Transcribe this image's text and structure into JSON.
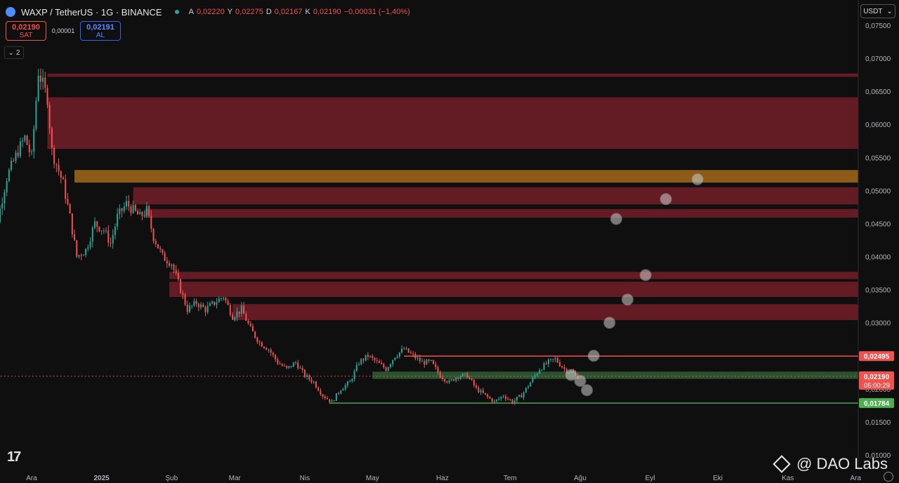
{
  "header": {
    "symbol_title": "WAXP / TetherUS · 1G · BINANCE",
    "ohlc": [
      {
        "key": "A",
        "value": "0,02220"
      },
      {
        "key": "Y",
        "value": "0,02275"
      },
      {
        "key": "D",
        "value": "0,02167"
      },
      {
        "key": "K",
        "value": "0,02190"
      }
    ],
    "change": "−0,00031 (−1,40%)"
  },
  "trade": {
    "sell_price": "0,02190",
    "sell_label": "SAT",
    "spread": "0,00001",
    "buy_price": "0,02191",
    "buy_label": "AL"
  },
  "collapse_count": "2",
  "currency": "USDT",
  "watermark": "@ DAO Labs",
  "tv_logo": "17",
  "colors": {
    "background": "#0f0f0f",
    "up": "#26a69a",
    "down": "#ef5350",
    "zone_red": "#6e1e27",
    "zone_orange": "#a2691a",
    "zone_green": "#2f5a32"
  },
  "chart_data": {
    "type": "candlestick",
    "y_axis": {
      "min": 0.009,
      "max": 0.0755,
      "ticks": [
        "0,07500",
        "0,07000",
        "0,06500",
        "0,06000",
        "0,05500",
        "0,05000",
        "0,04500",
        "0,04000",
        "0,03500",
        "0,03000",
        "0,02500",
        "0,02000",
        "0,01500",
        "0,01000"
      ],
      "tick_values": [
        0.075,
        0.07,
        0.065,
        0.06,
        0.055,
        0.05,
        0.045,
        0.04,
        0.035,
        0.03,
        0.025,
        0.02,
        0.015,
        0.01
      ]
    },
    "x_axis": {
      "labels": [
        "Ara",
        "2025",
        "Şub",
        "Mar",
        "Nis",
        "May",
        "Haz",
        "Tem",
        "Ağu",
        "Eyl",
        "Eki",
        "Kas",
        "Ara"
      ],
      "label_dates": [
        "2024-12-01",
        "2025-01-01",
        "2025-02-01",
        "2025-03-01",
        "2025-04-01",
        "2025-05-01",
        "2025-06-01",
        "2025-07-01",
        "2025-08-01",
        "2025-09-01",
        "2025-10-01",
        "2025-11-01",
        "2025-12-01"
      ]
    },
    "price_path": [
      [
        "2024-11-11",
        0.04
      ],
      [
        "2024-11-15",
        0.044
      ],
      [
        "2024-11-20",
        0.052
      ],
      [
        "2024-11-25",
        0.056
      ],
      [
        "2024-11-28",
        0.058
      ],
      [
        "2024-12-01",
        0.055
      ],
      [
        "2024-12-04",
        0.068
      ],
      [
        "2024-12-06",
        0.066
      ],
      [
        "2024-12-08",
        0.064
      ],
      [
        "2024-12-10",
        0.056
      ],
      [
        "2024-12-12",
        0.054
      ],
      [
        "2024-12-15",
        0.051
      ],
      [
        "2024-12-18",
        0.046
      ],
      [
        "2024-12-21",
        0.04
      ],
      [
        "2024-12-25",
        0.041
      ],
      [
        "2024-12-29",
        0.045
      ],
      [
        "2025-01-02",
        0.044
      ],
      [
        "2025-01-05",
        0.042
      ],
      [
        "2025-01-08",
        0.046
      ],
      [
        "2025-01-12",
        0.048
      ],
      [
        "2025-01-15",
        0.047
      ],
      [
        "2025-01-18",
        0.046
      ],
      [
        "2025-01-21",
        0.047
      ],
      [
        "2025-01-24",
        0.043
      ],
      [
        "2025-01-28",
        0.04
      ],
      [
        "2025-02-01",
        0.039
      ],
      [
        "2025-02-04",
        0.036
      ],
      [
        "2025-02-08",
        0.032
      ],
      [
        "2025-02-12",
        0.033
      ],
      [
        "2025-02-16",
        0.032
      ],
      [
        "2025-02-20",
        0.033
      ],
      [
        "2025-02-24",
        0.034
      ],
      [
        "2025-02-28",
        0.031
      ],
      [
        "2025-03-04",
        0.032
      ],
      [
        "2025-03-08",
        0.029
      ],
      [
        "2025-03-12",
        0.027
      ],
      [
        "2025-03-16",
        0.026
      ],
      [
        "2025-03-20",
        0.024
      ],
      [
        "2025-03-24",
        0.023
      ],
      [
        "2025-03-28",
        0.024
      ],
      [
        "2025-04-01",
        0.022
      ],
      [
        "2025-04-05",
        0.021
      ],
      [
        "2025-04-09",
        0.019
      ],
      [
        "2025-04-13",
        0.018
      ],
      [
        "2025-04-17",
        0.02
      ],
      [
        "2025-04-21",
        0.021
      ],
      [
        "2025-04-25",
        0.024
      ],
      [
        "2025-04-29",
        0.025
      ],
      [
        "2025-05-03",
        0.024
      ],
      [
        "2025-05-07",
        0.023
      ],
      [
        "2025-05-11",
        0.025
      ],
      [
        "2025-05-15",
        0.026
      ],
      [
        "2025-05-19",
        0.025
      ],
      [
        "2025-05-23",
        0.024
      ],
      [
        "2025-05-27",
        0.024
      ],
      [
        "2025-05-31",
        0.022
      ],
      [
        "2025-06-04",
        0.021
      ],
      [
        "2025-06-08",
        0.022
      ],
      [
        "2025-06-12",
        0.022
      ],
      [
        "2025-06-16",
        0.02
      ],
      [
        "2025-06-20",
        0.019
      ],
      [
        "2025-06-24",
        0.018
      ],
      [
        "2025-06-28",
        0.019
      ],
      [
        "2025-07-02",
        0.018
      ],
      [
        "2025-07-06",
        0.019
      ],
      [
        "2025-07-10",
        0.021
      ],
      [
        "2025-07-14",
        0.023
      ],
      [
        "2025-07-18",
        0.024
      ],
      [
        "2025-07-21",
        0.0245
      ],
      [
        "2025-07-25",
        0.023
      ],
      [
        "2025-07-28",
        0.0225
      ],
      [
        "2025-07-31",
        0.0219
      ]
    ],
    "zones": [
      {
        "color": "red",
        "y1": 0.0672,
        "y2": 0.0677,
        "x_start": "2024-12-08"
      },
      {
        "color": "red",
        "y1": 0.0563,
        "y2": 0.0641,
        "x_start": "2024-12-08"
      },
      {
        "color": "orange",
        "y1": 0.0512,
        "y2": 0.0531,
        "x_start": "2024-12-20"
      },
      {
        "color": "red",
        "y1": 0.0479,
        "y2": 0.0505,
        "x_start": "2025-01-15"
      },
      {
        "color": "red",
        "y1": 0.0459,
        "y2": 0.0472,
        "x_start": "2025-01-20"
      },
      {
        "color": "red",
        "y1": 0.0366,
        "y2": 0.0377,
        "x_start": "2025-01-31"
      },
      {
        "color": "red",
        "y1": 0.0339,
        "y2": 0.0362,
        "x_start": "2025-01-31"
      },
      {
        "color": "red",
        "y1": 0.0304,
        "y2": 0.0328,
        "x_start": "2025-02-28"
      },
      {
        "color": "green",
        "y1": 0.0215,
        "y2": 0.0226,
        "x_start": "2025-05-01"
      }
    ],
    "levels": [
      {
        "value": 0.02495,
        "label": "0,02495",
        "color": "red",
        "x_start": "2025-05-15"
      },
      {
        "value": 0.01784,
        "label": "0,01784",
        "color": "green",
        "x_start": "2025-04-12"
      },
      {
        "value": 0.0219,
        "label": "0,02190",
        "color": "current",
        "x_start": "2024-11-11",
        "countdown": "05:00:29"
      }
    ],
    "projection_points": [
      [
        "2025-07-28",
        0.0221
      ],
      [
        "2025-08-01",
        0.0212
      ],
      [
        "2025-08-04",
        0.0198
      ],
      [
        "2025-08-07",
        0.025
      ],
      [
        "2025-08-14",
        0.03
      ],
      [
        "2025-08-22",
        0.0335
      ],
      [
        "2025-08-30",
        0.0372
      ],
      [
        "2025-08-17",
        0.0457
      ],
      [
        "2025-09-08",
        0.0487
      ],
      [
        "2025-09-22",
        0.0517
      ]
    ]
  }
}
